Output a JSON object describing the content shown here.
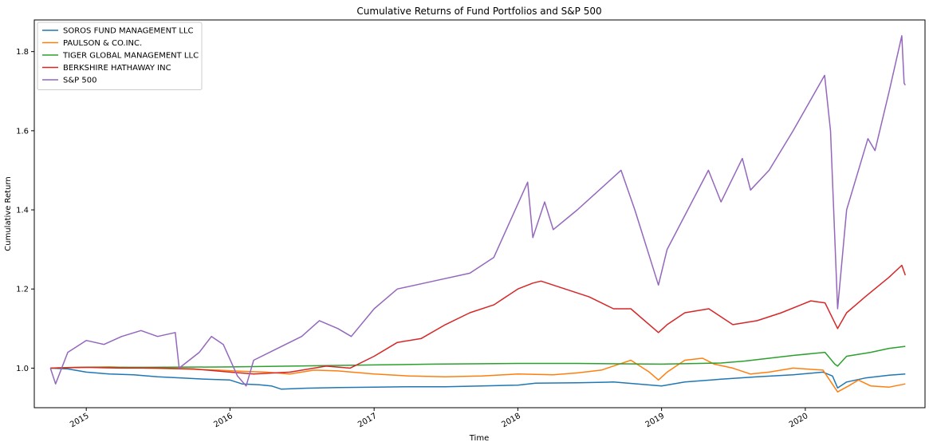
{
  "chart_data": {
    "type": "line",
    "title": "Cumulative Returns of Fund Portfolios and S&P 500",
    "xlabel": "Time",
    "ylabel": "Cumulative Return",
    "xlim": [
      "2014-08-22",
      "2020-10-31"
    ],
    "ylim": [
      0.9,
      1.88
    ],
    "grid": false,
    "legend_position": "top-left",
    "x_ticks": [
      {
        "date": "2015-01-01",
        "label": "2015"
      },
      {
        "date": "2016-01-01",
        "label": "2016"
      },
      {
        "date": "2017-01-01",
        "label": "2017"
      },
      {
        "date": "2018-01-01",
        "label": "2018"
      },
      {
        "date": "2019-01-01",
        "label": "2019"
      },
      {
        "date": "2020-01-01",
        "label": "2020"
      }
    ],
    "y_ticks": [
      {
        "value": 1.0,
        "label": "1.0"
      },
      {
        "value": 1.2,
        "label": "1.2"
      },
      {
        "value": 1.4,
        "label": "1.4"
      },
      {
        "value": 1.6,
        "label": "1.6"
      },
      {
        "value": 1.8,
        "label": "1.8"
      }
    ],
    "series": [
      {
        "name": "SOROS FUND MANAGEMENT LLC",
        "color": "#1f77b4",
        "points": [
          [
            "2014-10-02",
            1.0
          ],
          [
            "2014-11-15",
            0.998
          ],
          [
            "2015-01-01",
            0.99
          ],
          [
            "2015-03-01",
            0.985
          ],
          [
            "2015-05-01",
            0.983
          ],
          [
            "2015-07-01",
            0.978
          ],
          [
            "2015-09-01",
            0.975
          ],
          [
            "2015-11-01",
            0.972
          ],
          [
            "2016-01-01",
            0.97
          ],
          [
            "2016-02-01",
            0.96
          ],
          [
            "2016-03-15",
            0.958
          ],
          [
            "2016-04-15",
            0.955
          ],
          [
            "2016-05-10",
            0.947
          ],
          [
            "2016-07-01",
            0.949
          ],
          [
            "2016-10-01",
            0.951
          ],
          [
            "2017-01-01",
            0.952
          ],
          [
            "2017-04-01",
            0.953
          ],
          [
            "2017-07-01",
            0.953
          ],
          [
            "2017-10-01",
            0.955
          ],
          [
            "2018-01-01",
            0.957
          ],
          [
            "2018-02-15",
            0.962
          ],
          [
            "2018-06-01",
            0.963
          ],
          [
            "2018-09-01",
            0.965
          ],
          [
            "2018-11-01",
            0.96
          ],
          [
            "2019-01-01",
            0.955
          ],
          [
            "2019-03-01",
            0.965
          ],
          [
            "2019-06-01",
            0.972
          ],
          [
            "2019-09-01",
            0.978
          ],
          [
            "2019-12-01",
            0.983
          ],
          [
            "2020-02-15",
            0.99
          ],
          [
            "2020-03-10",
            0.98
          ],
          [
            "2020-03-23",
            0.95
          ],
          [
            "2020-04-15",
            0.965
          ],
          [
            "2020-06-01",
            0.975
          ],
          [
            "2020-08-01",
            0.982
          ],
          [
            "2020-09-11",
            0.985
          ]
        ]
      },
      {
        "name": "PAULSON & CO.INC.",
        "color": "#ff7f0e",
        "points": [
          [
            "2014-10-02",
            1.0
          ],
          [
            "2014-12-01",
            1.002
          ],
          [
            "2015-03-01",
            1.003
          ],
          [
            "2015-06-01",
            1.0
          ],
          [
            "2015-09-01",
            0.998
          ],
          [
            "2015-12-01",
            0.995
          ],
          [
            "2016-02-01",
            0.992
          ],
          [
            "2016-04-01",
            0.99
          ],
          [
            "2016-06-01",
            0.985
          ],
          [
            "2016-08-01",
            0.995
          ],
          [
            "2016-10-01",
            0.993
          ],
          [
            "2017-01-01",
            0.985
          ],
          [
            "2017-04-01",
            0.98
          ],
          [
            "2017-07-01",
            0.978
          ],
          [
            "2017-10-01",
            0.98
          ],
          [
            "2018-01-01",
            0.985
          ],
          [
            "2018-04-01",
            0.983
          ],
          [
            "2018-06-01",
            0.988
          ],
          [
            "2018-08-01",
            0.995
          ],
          [
            "2018-09-15",
            1.01
          ],
          [
            "2018-10-15",
            1.02
          ],
          [
            "2018-12-01",
            0.99
          ],
          [
            "2018-12-24",
            0.97
          ],
          [
            "2019-01-15",
            0.99
          ],
          [
            "2019-03-01",
            1.02
          ],
          [
            "2019-04-15",
            1.025
          ],
          [
            "2019-05-15",
            1.01
          ],
          [
            "2019-07-01",
            1.0
          ],
          [
            "2019-08-15",
            0.985
          ],
          [
            "2019-10-01",
            0.99
          ],
          [
            "2019-12-01",
            1.0
          ],
          [
            "2020-02-15",
            0.995
          ],
          [
            "2020-03-23",
            0.94
          ],
          [
            "2020-04-20",
            0.955
          ],
          [
            "2020-05-15",
            0.97
          ],
          [
            "2020-06-15",
            0.955
          ],
          [
            "2020-08-01",
            0.952
          ],
          [
            "2020-09-11",
            0.96
          ]
        ]
      },
      {
        "name": "TIGER GLOBAL MANAGEMENT LLC",
        "color": "#2ca02c",
        "points": [
          [
            "2014-10-02",
            1.0
          ],
          [
            "2015-01-01",
            1.002
          ],
          [
            "2015-06-01",
            1.002
          ],
          [
            "2016-01-01",
            1.003
          ],
          [
            "2016-06-01",
            1.005
          ],
          [
            "2017-01-01",
            1.008
          ],
          [
            "2017-06-01",
            1.01
          ],
          [
            "2018-01-01",
            1.012
          ],
          [
            "2018-06-01",
            1.012
          ],
          [
            "2019-01-01",
            1.01
          ],
          [
            "2019-06-01",
            1.013
          ],
          [
            "2019-08-01",
            1.018
          ],
          [
            "2019-10-01",
            1.025
          ],
          [
            "2019-12-01",
            1.032
          ],
          [
            "2020-02-20",
            1.04
          ],
          [
            "2020-03-16",
            1.01
          ],
          [
            "2020-03-23",
            1.005
          ],
          [
            "2020-04-15",
            1.03
          ],
          [
            "2020-06-15",
            1.04
          ],
          [
            "2020-08-01",
            1.05
          ],
          [
            "2020-09-11",
            1.055
          ]
        ]
      },
      {
        "name": "BERKSHIRE HATHAWAY INC",
        "color": "#d62728",
        "points": [
          [
            "2014-10-02",
            1.0
          ],
          [
            "2015-01-01",
            1.002
          ],
          [
            "2015-04-01",
            1.0
          ],
          [
            "2015-07-01",
            1.0
          ],
          [
            "2015-10-01",
            0.998
          ],
          [
            "2016-01-01",
            0.99
          ],
          [
            "2016-03-01",
            0.985
          ],
          [
            "2016-06-01",
            0.99
          ],
          [
            "2016-09-01",
            1.005
          ],
          [
            "2016-11-01",
            1.0
          ],
          [
            "2017-01-01",
            1.03
          ],
          [
            "2017-03-01",
            1.065
          ],
          [
            "2017-05-01",
            1.075
          ],
          [
            "2017-07-01",
            1.11
          ],
          [
            "2017-09-01",
            1.14
          ],
          [
            "2017-11-01",
            1.16
          ],
          [
            "2018-01-01",
            1.2
          ],
          [
            "2018-02-08",
            1.215
          ],
          [
            "2018-03-01",
            1.22
          ],
          [
            "2018-05-01",
            1.2
          ],
          [
            "2018-07-01",
            1.18
          ],
          [
            "2018-09-01",
            1.15
          ],
          [
            "2018-10-15",
            1.15
          ],
          [
            "2018-12-24",
            1.09
          ],
          [
            "2019-01-15",
            1.11
          ],
          [
            "2019-03-01",
            1.14
          ],
          [
            "2019-05-01",
            1.15
          ],
          [
            "2019-07-01",
            1.11
          ],
          [
            "2019-09-01",
            1.12
          ],
          [
            "2019-11-01",
            1.14
          ],
          [
            "2020-01-15",
            1.17
          ],
          [
            "2020-02-20",
            1.165
          ],
          [
            "2020-03-23",
            1.1
          ],
          [
            "2020-04-15",
            1.14
          ],
          [
            "2020-06-01",
            1.18
          ],
          [
            "2020-08-01",
            1.23
          ],
          [
            "2020-09-02",
            1.26
          ],
          [
            "2020-09-11",
            1.235
          ]
        ]
      },
      {
        "name": "S&P 500",
        "color": "#9467bd",
        "points": [
          [
            "2014-10-02",
            1.0
          ],
          [
            "2014-10-15",
            0.96
          ],
          [
            "2014-11-15",
            1.04
          ],
          [
            "2015-01-01",
            1.07
          ],
          [
            "2015-02-15",
            1.06
          ],
          [
            "2015-04-01",
            1.08
          ],
          [
            "2015-05-20",
            1.095
          ],
          [
            "2015-07-01",
            1.08
          ],
          [
            "2015-08-15",
            1.09
          ],
          [
            "2015-08-25",
            1.0
          ],
          [
            "2015-10-15",
            1.04
          ],
          [
            "2015-11-15",
            1.08
          ],
          [
            "2015-12-15",
            1.06
          ],
          [
            "2016-01-20",
            0.98
          ],
          [
            "2016-02-11",
            0.955
          ],
          [
            "2016-03-01",
            1.02
          ],
          [
            "2016-05-01",
            1.05
          ],
          [
            "2016-07-01",
            1.08
          ],
          [
            "2016-08-15",
            1.12
          ],
          [
            "2016-10-01",
            1.1
          ],
          [
            "2016-11-04",
            1.08
          ],
          [
            "2017-01-01",
            1.15
          ],
          [
            "2017-03-01",
            1.2
          ],
          [
            "2017-06-01",
            1.22
          ],
          [
            "2017-09-01",
            1.24
          ],
          [
            "2017-11-01",
            1.28
          ],
          [
            "2018-01-26",
            1.47
          ],
          [
            "2018-02-08",
            1.33
          ],
          [
            "2018-03-10",
            1.42
          ],
          [
            "2018-04-01",
            1.35
          ],
          [
            "2018-06-01",
            1.4
          ],
          [
            "2018-09-20",
            1.5
          ],
          [
            "2018-10-25",
            1.4
          ],
          [
            "2018-12-24",
            1.21
          ],
          [
            "2019-01-15",
            1.3
          ],
          [
            "2019-04-30",
            1.5
          ],
          [
            "2019-06-01",
            1.42
          ],
          [
            "2019-07-25",
            1.53
          ],
          [
            "2019-08-15",
            1.45
          ],
          [
            "2019-10-01",
            1.5
          ],
          [
            "2019-12-01",
            1.6
          ],
          [
            "2020-02-19",
            1.74
          ],
          [
            "2020-03-05",
            1.6
          ],
          [
            "2020-03-23",
            1.15
          ],
          [
            "2020-04-15",
            1.4
          ],
          [
            "2020-06-08",
            1.58
          ],
          [
            "2020-06-26",
            1.55
          ],
          [
            "2020-08-01",
            1.7
          ],
          [
            "2020-09-02",
            1.84
          ],
          [
            "2020-09-08",
            1.72
          ],
          [
            "2020-09-11",
            1.715
          ]
        ]
      }
    ]
  }
}
